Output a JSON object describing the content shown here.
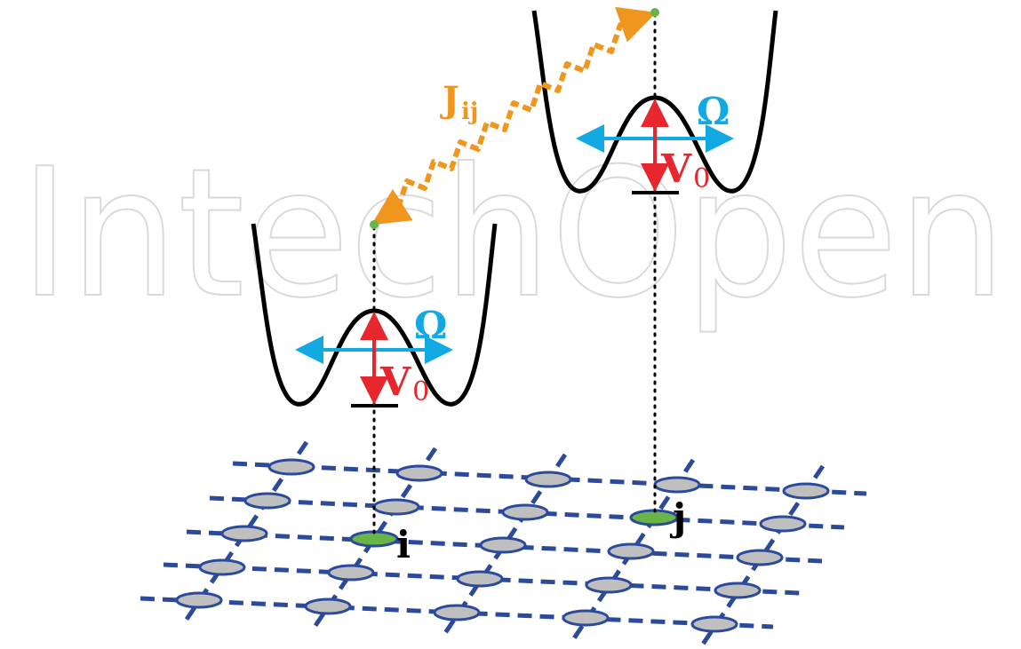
{
  "watermark": "IntechOpen",
  "labels": {
    "coupling": "J",
    "coupling_sub": "ij",
    "omega_left": "Ω",
    "omega_right": "Ω",
    "barrier_left": "V",
    "barrier_left_sub": "0",
    "barrier_right": "V",
    "barrier_right_sub": "0",
    "site_i": "i",
    "site_j": "j"
  },
  "colors": {
    "coupling": "#f0961e",
    "tunneling": "#12a9e2",
    "barrier": "#e8262e",
    "lattice_line": "#2b4a9b",
    "site_fill": "#bfbfbf",
    "active_site": "#6ab547",
    "potential": "#000000"
  }
}
